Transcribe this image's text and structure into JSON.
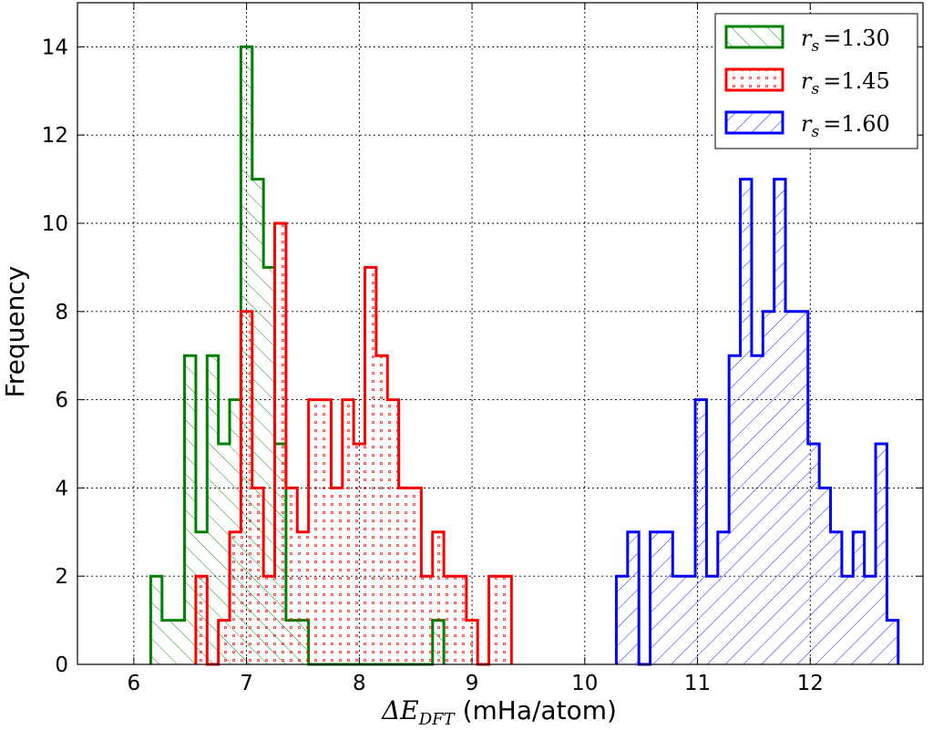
{
  "chart_data": {
    "type": "histogram",
    "xlabel_prefix": "ΔE",
    "xlabel_subscript": "DFT",
    "xlabel_suffix": " (mHa/atom)",
    "ylabel": "Frequency",
    "xlim": [
      5.5,
      13.0
    ],
    "ylim": [
      0,
      15
    ],
    "xticks": [
      6,
      7,
      8,
      9,
      10,
      11,
      12
    ],
    "yticks": [
      0,
      2,
      4,
      6,
      8,
      10,
      12,
      14
    ],
    "grid": true,
    "legend_position": "top-right",
    "bin_width": 0.1,
    "series": [
      {
        "name": "r_s =1.30",
        "legend_label": "r",
        "legend_sub": "s",
        "legend_value": "=1.30",
        "color": "#008000",
        "hatch": "forward-diagonal",
        "start": 6.15,
        "counts": [
          2,
          1,
          1,
          7,
          3,
          7,
          5,
          6,
          14,
          11,
          9,
          5,
          1,
          1,
          0,
          0,
          0,
          0,
          0,
          0,
          0,
          0,
          0,
          0,
          0,
          1
        ]
      },
      {
        "name": "r_s =1.45",
        "legend_label": "r",
        "legend_sub": "s",
        "legend_value": "=1.45",
        "color": "#ff0000",
        "hatch": "dots",
        "start": 6.55,
        "counts": [
          2,
          0,
          1,
          3,
          8,
          4,
          2,
          10,
          4,
          3,
          6,
          6,
          4,
          6,
          5,
          9,
          7,
          6,
          4,
          4,
          2,
          3,
          2,
          2,
          1,
          0,
          2,
          2
        ]
      },
      {
        "name": "r_s =1.60",
        "legend_label": "r",
        "legend_sub": "s",
        "legend_value": "=1.60",
        "color": "#0000ff",
        "hatch": "backward-diagonal",
        "start": 10.28,
        "counts": [
          2,
          3,
          0,
          3,
          3,
          2,
          2,
          6,
          2,
          3,
          7,
          11,
          7,
          8,
          11,
          8,
          8,
          5,
          4,
          3,
          2,
          3,
          2,
          5,
          1
        ]
      }
    ]
  }
}
